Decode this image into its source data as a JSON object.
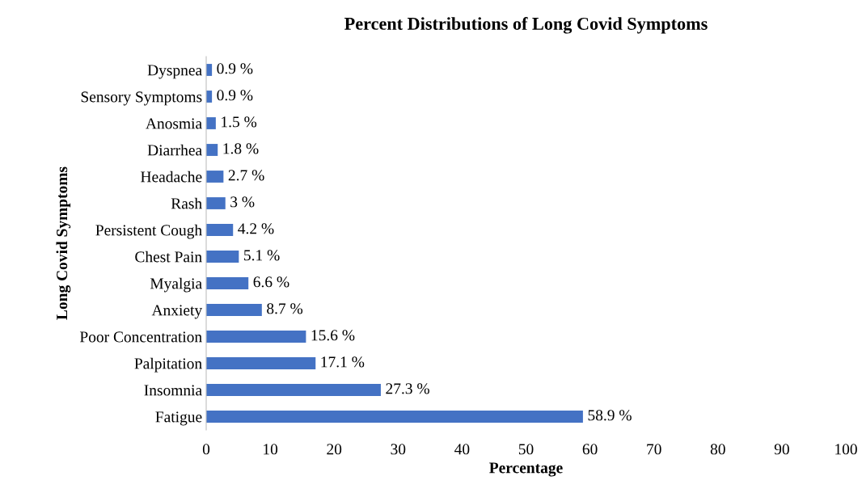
{
  "chart_data": {
    "type": "bar",
    "orientation": "horizontal",
    "title": "Percent Distributions of Long Covid Symptoms",
    "xlabel": "Percentage",
    "ylabel": "Long Covid Symptoms",
    "categories": [
      "Dyspnea",
      "Sensory Symptoms",
      "Anosmia",
      "Diarrhea",
      "Headache",
      "Rash",
      "Persistent Cough",
      "Chest Pain",
      "Myalgia",
      "Anxiety",
      "Poor Concentration",
      "Palpitation",
      "Insomnia",
      "Fatigue"
    ],
    "values": [
      0.9,
      0.9,
      1.5,
      1.8,
      2.7,
      3,
      4.2,
      5.1,
      6.6,
      8.7,
      15.6,
      17.1,
      27.3,
      58.9
    ],
    "value_labels": [
      "0.9 %",
      "0.9 %",
      "1.5 %",
      "1.8 %",
      "2.7 %",
      "3 %",
      "4.2 %",
      "5.1 %",
      "6.6 %",
      "8.7 %",
      "15.6 %",
      "17.1 %",
      "27.3 %",
      "58.9 %"
    ],
    "color": "#4472c4",
    "xlim": [
      0,
      100
    ],
    "xticks": [
      0,
      10,
      20,
      30,
      40,
      50,
      60,
      70,
      80,
      90,
      100
    ],
    "grid": false,
    "legend": false
  }
}
